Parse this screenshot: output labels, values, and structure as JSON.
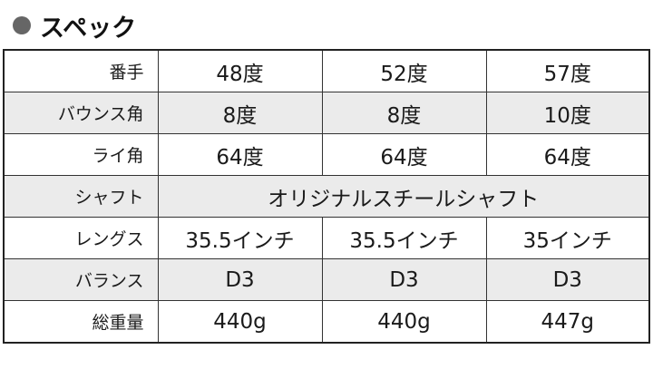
{
  "title": "スペック",
  "rows": [
    {
      "label": "番手",
      "values": [
        "48度",
        "52度",
        "57度"
      ]
    },
    {
      "label": "バウンス角",
      "values": [
        "8度",
        "8度",
        "10度"
      ]
    },
    {
      "label": "ライ角",
      "values": [
        "64度",
        "64度",
        "64度"
      ]
    },
    {
      "label": "シャフト",
      "values": [
        "オリジナルスチールシャフト"
      ]
    },
    {
      "label": "レングス",
      "values": [
        "35.5インチ",
        "35.5インチ",
        "35インチ"
      ]
    },
    {
      "label": "バランス",
      "values": [
        "D3",
        "D3",
        "D3"
      ]
    },
    {
      "label": "総重量",
      "values": [
        "440g",
        "440g",
        "447g"
      ]
    }
  ]
}
